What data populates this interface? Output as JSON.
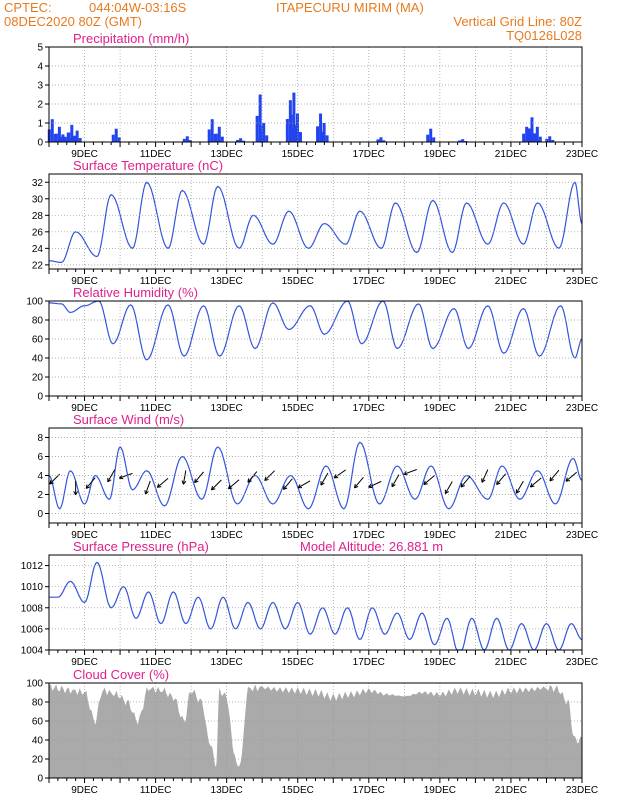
{
  "header": {
    "source": "CPTEC:",
    "coords": "044:04W-03:16S",
    "location": "ITAPECURU MIRIM (MA)",
    "date": "08DEC2020 80Z (GMT)",
    "grid_note": "Vertical Grid Line: 80Z",
    "code": "TQ0126L028"
  },
  "x_days": [
    "9DEC",
    "11DEC",
    "13DEC",
    "15DEC",
    "17DEC",
    "19DEC",
    "21DEC",
    "23DEC"
  ],
  "colors": {
    "line": "#3355dd",
    "bar": "#2244ee",
    "cloud": "#aaaaaa",
    "header": "#e87a1e",
    "title": "#e0208c"
  },
  "chart_data": [
    {
      "type": "bar",
      "title": "Precipitation (mm/h)",
      "ylim": [
        0,
        5
      ],
      "yticks": [
        "0",
        "1",
        "2",
        "3",
        "4",
        "5"
      ],
      "peaks": [
        [
          8.05,
          1.2
        ],
        [
          8.25,
          0.8
        ],
        [
          8.35,
          0.4
        ],
        [
          8.5,
          0.5
        ],
        [
          8.6,
          0.9
        ],
        [
          8.75,
          0.6
        ],
        [
          9.85,
          0.7
        ],
        [
          11.85,
          0.3
        ],
        [
          12.55,
          1.2
        ],
        [
          12.75,
          0.8
        ],
        [
          13.35,
          0.2
        ],
        [
          13.9,
          2.5
        ],
        [
          14.0,
          1.0
        ],
        [
          14.75,
          2.2
        ],
        [
          14.85,
          2.6
        ],
        [
          14.95,
          1.5
        ],
        [
          15.6,
          1.5
        ],
        [
          15.7,
          1.0
        ],
        [
          17.3,
          0.25
        ],
        [
          18.7,
          0.7
        ],
        [
          19.6,
          0.15
        ],
        [
          21.4,
          0.8
        ],
        [
          21.55,
          1.3
        ],
        [
          21.7,
          0.8
        ],
        [
          22.05,
          0.3
        ]
      ]
    },
    {
      "type": "line",
      "title": "Surface Temperature (nC)",
      "ylim": [
        21.5,
        33
      ],
      "yticks": [
        "22",
        "24",
        "26",
        "28",
        "30",
        "32"
      ],
      "min_max": [
        [
          8.0,
          22.5
        ],
        [
          8.35,
          22.3
        ],
        [
          8.75,
          26
        ],
        [
          9.35,
          23
        ],
        [
          9.75,
          30.5
        ],
        [
          10.35,
          24
        ],
        [
          10.75,
          32
        ],
        [
          11.35,
          24
        ],
        [
          11.75,
          31
        ],
        [
          12.35,
          24.5
        ],
        [
          12.75,
          31.5
        ],
        [
          13.35,
          24
        ],
        [
          13.75,
          28
        ],
        [
          14.3,
          24.5
        ],
        [
          14.75,
          28.5
        ],
        [
          15.3,
          24
        ],
        [
          15.75,
          27
        ],
        [
          16.35,
          24.5
        ],
        [
          16.75,
          28.5
        ],
        [
          17.35,
          24
        ],
        [
          17.75,
          29.5
        ],
        [
          18.35,
          23.5
        ],
        [
          18.8,
          29.8
        ],
        [
          19.35,
          23.5
        ],
        [
          19.75,
          29.5
        ],
        [
          20.35,
          24.5
        ],
        [
          20.8,
          29.5
        ],
        [
          21.35,
          24.5
        ],
        [
          21.75,
          29.5
        ],
        [
          22.35,
          24
        ],
        [
          22.8,
          32
        ],
        [
          23.0,
          27
        ]
      ]
    },
    {
      "type": "line",
      "title": "Relative Humidity (%)",
      "ylim": [
        0,
        100
      ],
      "yticks": [
        "0",
        "20",
        "40",
        "60",
        "80",
        "100"
      ],
      "min_max": [
        [
          8.0,
          98
        ],
        [
          8.35,
          97
        ],
        [
          8.6,
          88
        ],
        [
          9.0,
          95
        ],
        [
          9.4,
          100
        ],
        [
          9.8,
          55
        ],
        [
          10.3,
          96
        ],
        [
          10.75,
          38
        ],
        [
          11.35,
          96
        ],
        [
          11.8,
          42
        ],
        [
          12.35,
          95
        ],
        [
          12.8,
          42
        ],
        [
          13.35,
          95
        ],
        [
          13.8,
          50
        ],
        [
          14.3,
          98
        ],
        [
          14.75,
          70
        ],
        [
          15.35,
          95
        ],
        [
          15.75,
          65
        ],
        [
          16.4,
          100
        ],
        [
          16.8,
          55
        ],
        [
          17.4,
          100
        ],
        [
          17.8,
          50
        ],
        [
          18.4,
          97
        ],
        [
          18.8,
          50
        ],
        [
          19.4,
          92
        ],
        [
          19.8,
          50
        ],
        [
          20.35,
          95
        ],
        [
          20.8,
          45
        ],
        [
          21.35,
          92
        ],
        [
          21.8,
          42
        ],
        [
          22.4,
          95
        ],
        [
          22.8,
          40
        ],
        [
          23.0,
          60
        ]
      ]
    },
    {
      "type": "line",
      "title": "Surface Wind (m/s)",
      "ylim": [
        -1,
        9
      ],
      "yticks": [
        "0",
        "2",
        "4",
        "6",
        "8"
      ],
      "min_max": [
        [
          8.0,
          4
        ],
        [
          8.3,
          0.5
        ],
        [
          8.6,
          4.5
        ],
        [
          9.0,
          1
        ],
        [
          9.3,
          4
        ],
        [
          9.7,
          1.5
        ],
        [
          10.0,
          7
        ],
        [
          10.35,
          2.5
        ],
        [
          10.75,
          4.5
        ],
        [
          11.25,
          0.8
        ],
        [
          11.75,
          6
        ],
        [
          12.3,
          1.5
        ],
        [
          12.75,
          7
        ],
        [
          13.3,
          1
        ],
        [
          13.8,
          4
        ],
        [
          14.3,
          1
        ],
        [
          14.8,
          4
        ],
        [
          15.3,
          0.5
        ],
        [
          15.8,
          5
        ],
        [
          16.3,
          0.5
        ],
        [
          16.75,
          7.5
        ],
        [
          17.3,
          1
        ],
        [
          17.8,
          5
        ],
        [
          18.3,
          1.5
        ],
        [
          18.75,
          5
        ],
        [
          19.25,
          0.5
        ],
        [
          19.75,
          4
        ],
        [
          20.35,
          1.5
        ],
        [
          20.75,
          5
        ],
        [
          21.25,
          1.5
        ],
        [
          21.75,
          4.5
        ],
        [
          22.25,
          1
        ],
        [
          22.75,
          5.8
        ],
        [
          23.0,
          3.5
        ]
      ],
      "arrows": [
        [
          8.3,
          225
        ],
        [
          8.75,
          270
        ],
        [
          9.3,
          230
        ],
        [
          9.85,
          240
        ],
        [
          10.35,
          200
        ],
        [
          10.85,
          250
        ],
        [
          11.35,
          220
        ],
        [
          11.85,
          260
        ],
        [
          12.35,
          230
        ],
        [
          12.85,
          225
        ],
        [
          13.35,
          220
        ],
        [
          13.85,
          230
        ],
        [
          14.35,
          225
        ],
        [
          14.85,
          230
        ],
        [
          15.35,
          210
        ],
        [
          15.85,
          240
        ],
        [
          16.35,
          215
        ],
        [
          16.85,
          230
        ],
        [
          17.35,
          205
        ],
        [
          17.85,
          240
        ],
        [
          18.35,
          200
        ],
        [
          18.85,
          220
        ],
        [
          19.35,
          240
        ],
        [
          19.85,
          230
        ],
        [
          20.35,
          245
        ],
        [
          20.85,
          230
        ],
        [
          21.35,
          240
        ],
        [
          21.85,
          220
        ],
        [
          22.35,
          230
        ],
        [
          22.85,
          220
        ]
      ]
    },
    {
      "type": "line",
      "title": "Surface Pressure (hPa)",
      "annotation": "Model Altitude: 26.881 m",
      "ylim": [
        1004,
        1013
      ],
      "yticks": [
        "1004",
        "1006",
        "1008",
        "1010",
        "1012"
      ],
      "min_max": [
        [
          8.0,
          1009
        ],
        [
          8.25,
          1009
        ],
        [
          8.6,
          1010.5
        ],
        [
          9.0,
          1008.5
        ],
        [
          9.35,
          1012.3
        ],
        [
          9.75,
          1008
        ],
        [
          10.1,
          1010
        ],
        [
          10.45,
          1007
        ],
        [
          10.8,
          1009.5
        ],
        [
          11.15,
          1006.5
        ],
        [
          11.5,
          1009.5
        ],
        [
          11.85,
          1006.5
        ],
        [
          12.2,
          1009
        ],
        [
          12.55,
          1006
        ],
        [
          12.9,
          1009
        ],
        [
          13.25,
          1006
        ],
        [
          13.6,
          1008.5
        ],
        [
          13.95,
          1006
        ],
        [
          14.3,
          1008.5
        ],
        [
          14.65,
          1006
        ],
        [
          15.0,
          1008.5
        ],
        [
          15.35,
          1005.5
        ],
        [
          15.7,
          1008
        ],
        [
          16.05,
          1005.5
        ],
        [
          16.4,
          1008
        ],
        [
          16.75,
          1005
        ],
        [
          17.1,
          1008
        ],
        [
          17.45,
          1005.5
        ],
        [
          17.8,
          1007.5
        ],
        [
          18.15,
          1005
        ],
        [
          18.5,
          1007.5
        ],
        [
          18.85,
          1004.5
        ],
        [
          19.2,
          1007
        ],
        [
          19.55,
          1003.5
        ],
        [
          19.9,
          1007
        ],
        [
          20.25,
          1004
        ],
        [
          20.6,
          1007
        ],
        [
          20.95,
          1004
        ],
        [
          21.3,
          1006.5
        ],
        [
          21.65,
          1004
        ],
        [
          22.0,
          1006.5
        ],
        [
          22.35,
          1004
        ],
        [
          22.7,
          1006.5
        ],
        [
          23.0,
          1005
        ]
      ]
    },
    {
      "type": "area",
      "title": "Cloud Cover (%)",
      "ylim": [
        0,
        100
      ],
      "yticks": [
        "0",
        "20",
        "40",
        "60",
        "80",
        "100"
      ],
      "points": [
        [
          8.0,
          96
        ],
        [
          8.3,
          94
        ],
        [
          8.6,
          92
        ],
        [
          9.0,
          90
        ],
        [
          9.3,
          60
        ],
        [
          9.5,
          92
        ],
        [
          9.9,
          88
        ],
        [
          10.2,
          80
        ],
        [
          10.5,
          60
        ],
        [
          10.8,
          94
        ],
        [
          11.2,
          92
        ],
        [
          11.5,
          85
        ],
        [
          11.8,
          60
        ],
        [
          12.0,
          92
        ],
        [
          12.3,
          80
        ],
        [
          12.5,
          40
        ],
        [
          12.7,
          15
        ],
        [
          12.8,
          92
        ],
        [
          13.0,
          85
        ],
        [
          13.2,
          30
        ],
        [
          13.3,
          10
        ],
        [
          13.4,
          20
        ],
        [
          13.6,
          94
        ],
        [
          14.0,
          95
        ],
        [
          14.5,
          93
        ],
        [
          15.0,
          92
        ],
        [
          15.5,
          90
        ],
        [
          16.0,
          85
        ],
        [
          16.5,
          88
        ],
        [
          17.0,
          92
        ],
        [
          17.5,
          88
        ],
        [
          18.0,
          86
        ],
        [
          18.5,
          90
        ],
        [
          19.0,
          88
        ],
        [
          19.5,
          92
        ],
        [
          20.0,
          90
        ],
        [
          20.5,
          88
        ],
        [
          21.0,
          92
        ],
        [
          21.5,
          93
        ],
        [
          22.0,
          95
        ],
        [
          22.3,
          94
        ],
        [
          22.6,
          80
        ],
        [
          22.8,
          40
        ],
        [
          23.0,
          40
        ]
      ]
    }
  ]
}
